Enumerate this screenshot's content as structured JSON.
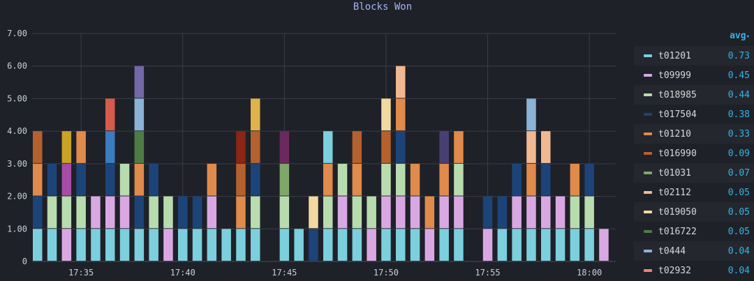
{
  "chart_data": {
    "type": "bar",
    "title": "Blocks Won",
    "ylim": [
      0,
      7
    ],
    "y_ticks": [
      "0",
      "1.00",
      "2.00",
      "3.00",
      "4.00",
      "5.00",
      "6.00",
      "7.00"
    ],
    "x_ticks": [
      "17:35",
      "17:40",
      "17:45",
      "17:50",
      "17:55",
      "18:00"
    ],
    "x_tick_bar_index": [
      3,
      10,
      17,
      24,
      31,
      38
    ],
    "grid": true,
    "legend_placement": "right",
    "legend_column_header": "avg",
    "series": [
      {
        "name": "t01201",
        "color": "#7ccfdc",
        "avg": "0.73"
      },
      {
        "name": "t09999",
        "color": "#d9a8e3",
        "avg": "0.45"
      },
      {
        "name": "t018985",
        "color": "#b8dcae",
        "avg": "0.44"
      },
      {
        "name": "t017504",
        "color": "#1c4478",
        "avg": "0.38"
      },
      {
        "name": "t01210",
        "color": "#e08a4b",
        "avg": "0.33"
      },
      {
        "name": "t016990",
        "color": "#b5612d",
        "avg": "0.09"
      },
      {
        "name": "t01031",
        "color": "#7ea86a",
        "avg": "0.07"
      },
      {
        "name": "t02112",
        "color": "#f1b992",
        "avg": "0.05"
      },
      {
        "name": "t019050",
        "color": "#f2d9a0",
        "avg": "0.05"
      },
      {
        "name": "t016722",
        "color": "#4f7c45",
        "avg": "0.05"
      },
      {
        "name": "t0444",
        "color": "#8ab3d6",
        "avg": "0.04"
      },
      {
        "name": "t02932",
        "color": "#e8857a",
        "avg": "0.04"
      }
    ],
    "stacks": [
      [
        [
          "#7ccfdc",
          1
        ],
        [
          "#1c4478",
          1
        ],
        [
          "#e08a4b",
          1
        ],
        [
          "#b5612d",
          1
        ]
      ],
      [
        [
          "#7ccfdc",
          1
        ],
        [
          "#b8dcae",
          1
        ],
        [
          "#1c4478",
          1
        ]
      ],
      [
        [
          "#d9a8e3",
          1
        ],
        [
          "#b8dcae",
          1
        ],
        [
          "#a64ca6",
          1
        ],
        [
          "#c9a227",
          1
        ]
      ],
      [
        [
          "#7ccfdc",
          1
        ],
        [
          "#b8dcae",
          1
        ],
        [
          "#1c4478",
          1
        ],
        [
          "#e08a4b",
          1
        ]
      ],
      [
        [
          "#7ccfdc",
          1
        ],
        [
          "#d9a8e3",
          1
        ]
      ],
      [
        [
          "#7ccfdc",
          1
        ],
        [
          "#d9a8e3",
          1
        ],
        [
          "#1c4478",
          1
        ],
        [
          "#3b7cc0",
          1
        ],
        [
          "#d65b4a",
          1
        ]
      ],
      [
        [
          "#7ccfdc",
          1
        ],
        [
          "#d9a8e3",
          1
        ],
        [
          "#b8dcae",
          1
        ]
      ],
      [
        [
          "#7ccfdc",
          1
        ],
        [
          "#1c4478",
          1
        ],
        [
          "#e08a4b",
          1
        ],
        [
          "#4f7c45",
          1
        ],
        [
          "#8ab3d6",
          1
        ],
        [
          "#7468a8",
          1
        ]
      ],
      [
        [
          "#7ccfdc",
          1
        ],
        [
          "#b8dcae",
          1
        ],
        [
          "#1c4478",
          1
        ]
      ],
      [
        [
          "#d9a8e3",
          1
        ],
        [
          "#b8dcae",
          1
        ]
      ],
      [
        [
          "#7ccfdc",
          1
        ],
        [
          "#1c4478",
          1
        ]
      ],
      [
        [
          "#7ccfdc",
          1
        ],
        [
          "#1c4478",
          1
        ]
      ],
      [
        [
          "#7ccfdc",
          1
        ],
        [
          "#d9a8e3",
          1
        ],
        [
          "#e08a4b",
          1
        ]
      ],
      [
        [
          "#7ccfdc",
          1
        ]
      ],
      [
        [
          "#7ccfdc",
          1
        ],
        [
          "#e08a4b",
          1
        ],
        [
          "#b5612d",
          1
        ],
        [
          "#8b2515",
          1
        ]
      ],
      [
        [
          "#7ccfdc",
          1
        ],
        [
          "#b8dcae",
          1
        ],
        [
          "#1c4478",
          1
        ],
        [
          "#b5612d",
          1
        ],
        [
          "#e0b24a",
          1
        ]
      ],
      [],
      [
        [
          "#7ccfdc",
          1
        ],
        [
          "#b8dcae",
          1
        ],
        [
          "#7ea86a",
          1
        ],
        [
          "#6b2a5e",
          1
        ]
      ],
      [
        [
          "#7ccfdc",
          1
        ]
      ],
      [
        [
          "#1c4478",
          1
        ],
        [
          "#f2d9a0",
          1
        ]
      ],
      [
        [
          "#7ccfdc",
          1
        ],
        [
          "#b8dcae",
          1
        ],
        [
          "#e08a4b",
          1
        ],
        [
          "#7ccfdc",
          1
        ]
      ],
      [
        [
          "#7ccfdc",
          1
        ],
        [
          "#d9a8e3",
          1
        ],
        [
          "#b8dcae",
          1
        ]
      ],
      [
        [
          "#7ccfdc",
          1
        ],
        [
          "#b8dcae",
          1
        ],
        [
          "#e08a4b",
          1
        ],
        [
          "#b5612d",
          1
        ]
      ],
      [
        [
          "#d9a8e3",
          1
        ],
        [
          "#b8dcae",
          1
        ]
      ],
      [
        [
          "#7ccfdc",
          1
        ],
        [
          "#d9a8e3",
          1
        ],
        [
          "#b8dcae",
          1
        ],
        [
          "#b5612d",
          1
        ],
        [
          "#f2d9a0",
          1
        ]
      ],
      [
        [
          "#7ccfdc",
          1
        ],
        [
          "#d9a8e3",
          1
        ],
        [
          "#b8dcae",
          1
        ],
        [
          "#1c4478",
          1
        ],
        [
          "#e08a4b",
          1
        ],
        [
          "#f1b992",
          1
        ]
      ],
      [
        [
          "#7ccfdc",
          1
        ],
        [
          "#d9a8e3",
          1
        ],
        [
          "#e08a4b",
          1
        ]
      ],
      [
        [
          "#d9a8e3",
          1
        ],
        [
          "#e08a4b",
          1
        ]
      ],
      [
        [
          "#7ccfdc",
          1
        ],
        [
          "#d9a8e3",
          1
        ],
        [
          "#e08a4b",
          1
        ],
        [
          "#4a3f73",
          1
        ]
      ],
      [
        [
          "#7ccfdc",
          1
        ],
        [
          "#d9a8e3",
          1
        ],
        [
          "#b8dcae",
          1
        ],
        [
          "#e08a4b",
          1
        ]
      ],
      [],
      [
        [
          "#d9a8e3",
          1
        ],
        [
          "#1c4478",
          1
        ]
      ],
      [
        [
          "#7ccfdc",
          1
        ],
        [
          "#1c4478",
          1
        ]
      ],
      [
        [
          "#7ccfdc",
          1
        ],
        [
          "#d9a8e3",
          1
        ],
        [
          "#1c4478",
          1
        ]
      ],
      [
        [
          "#7ccfdc",
          1
        ],
        [
          "#d9a8e3",
          1
        ],
        [
          "#e08a4b",
          1
        ],
        [
          "#f1b992",
          1
        ],
        [
          "#8ab3d6",
          1
        ]
      ],
      [
        [
          "#7ccfdc",
          1
        ],
        [
          "#d9a8e3",
          1
        ],
        [
          "#1c4478",
          1
        ],
        [
          "#f1b992",
          1
        ]
      ],
      [
        [
          "#7ccfdc",
          1
        ],
        [
          "#d9a8e3",
          1
        ]
      ],
      [
        [
          "#7ccfdc",
          1
        ],
        [
          "#b8dcae",
          1
        ],
        [
          "#e08a4b",
          1
        ]
      ],
      [
        [
          "#7ccfdc",
          1
        ],
        [
          "#b8dcae",
          1
        ],
        [
          "#1c4478",
          1
        ]
      ],
      [
        [
          "#d9a8e3",
          1
        ]
      ]
    ]
  }
}
